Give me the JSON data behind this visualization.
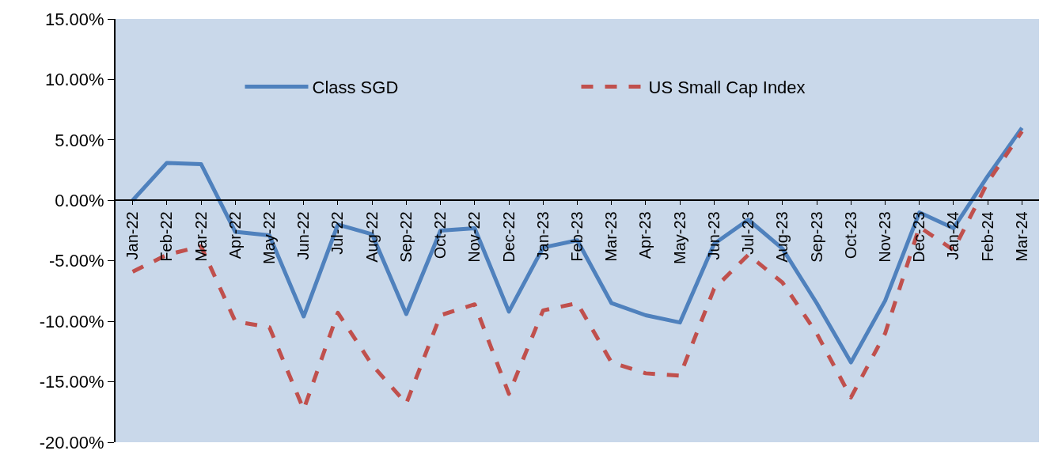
{
  "chart_data": {
    "type": "line",
    "categories": [
      "Jan-22",
      "Feb-22",
      "Mar-22",
      "Apr-22",
      "May-22",
      "Jun-22",
      "Jul-22",
      "Aug-22",
      "Sep-22",
      "Oct-22",
      "Nov-22",
      "Dec-22",
      "Jan-23",
      "Feb-23",
      "Mar-23",
      "Apr-23",
      "May-23",
      "Jun-23",
      "Jul-23",
      "Aug-23",
      "Sep-23",
      "Oct-23",
      "Nov-23",
      "Dec-23",
      "Jan-24",
      "Feb-24",
      "Mar-24"
    ],
    "series": [
      {
        "name": "Class SGD",
        "color": "#4f81bd",
        "line_style": "solid",
        "values": [
          0.0,
          3.1,
          3.0,
          -2.6,
          -2.9,
          -9.6,
          -2.0,
          -2.8,
          -9.4,
          -2.5,
          -2.3,
          -9.2,
          -3.9,
          -3.3,
          -8.5,
          -9.5,
          -10.1,
          -3.6,
          -1.6,
          -4.0,
          -8.5,
          -13.4,
          -8.3,
          -1.0,
          -2.3,
          2.0,
          6.0
        ]
      },
      {
        "name": "US Small Cap Index",
        "color": "#c0504d",
        "line_style": "dashed",
        "values": [
          -5.9,
          -4.5,
          -3.8,
          -10.0,
          -10.5,
          -17.3,
          -9.3,
          -13.6,
          -16.8,
          -9.5,
          -8.6,
          -16.0,
          -9.1,
          -8.5,
          -13.4,
          -14.3,
          -14.5,
          -7.3,
          -4.5,
          -6.8,
          -11.0,
          -16.3,
          -11.0,
          -2.2,
          -4.1,
          1.5,
          5.7
        ]
      }
    ],
    "ylim": [
      -20,
      15
    ],
    "yticks": [
      {
        "value": -20,
        "label": "-20.00%"
      },
      {
        "value": -15,
        "label": "-15.00%"
      },
      {
        "value": -10,
        "label": "-10.00%"
      },
      {
        "value": -5,
        "label": "-5.00%"
      },
      {
        "value": 0,
        "label": "0.00%"
      },
      {
        "value": 5,
        "label": "5.00%"
      },
      {
        "value": 10,
        "label": "10.00%"
      },
      {
        "value": 15,
        "label": "15.00%"
      }
    ],
    "grid": false,
    "legend": "top",
    "marker": "none"
  }
}
